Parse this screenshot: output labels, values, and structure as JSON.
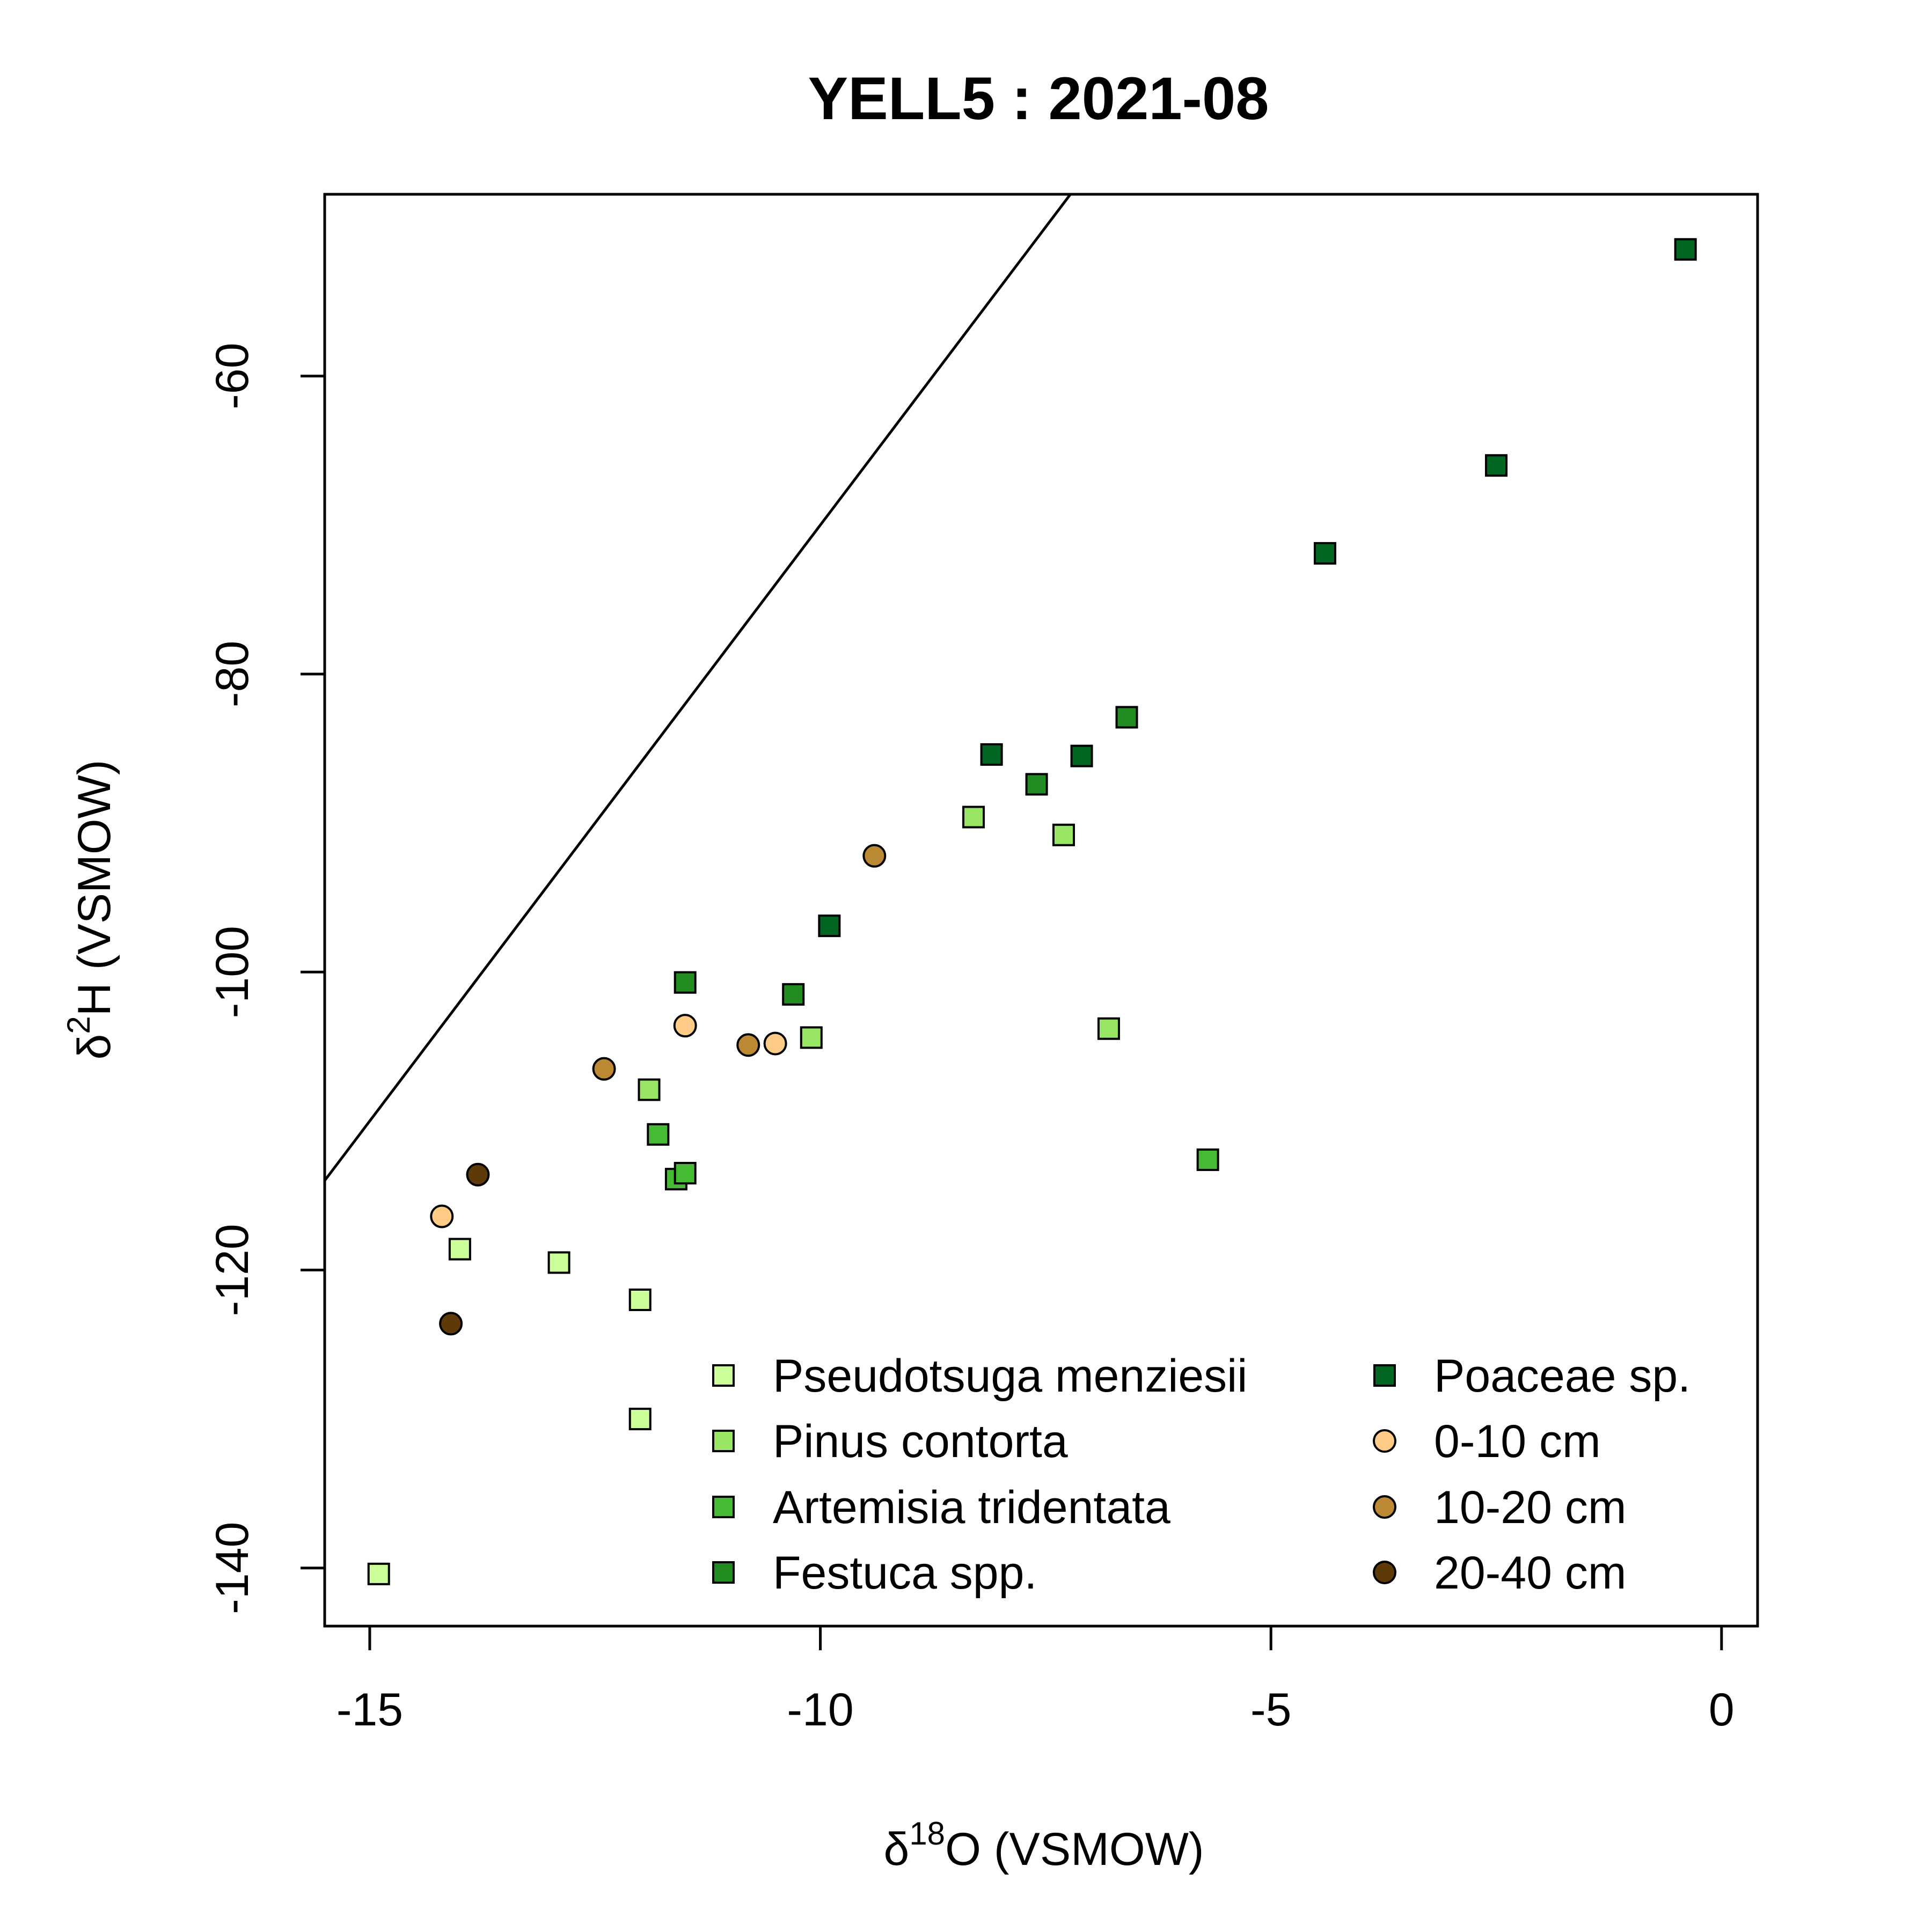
{
  "chart_data": {
    "type": "scatter",
    "title": "YELL5 : 2021-08",
    "xlabel": {
      "prefix": "δ",
      "sup": "18",
      "suffix": "O (VSMOW)"
    },
    "ylabel": {
      "prefix": "δ",
      "sup": "2",
      "suffix": "H (VSMOW)"
    },
    "xlim": [
      -15.5,
      0.4
    ],
    "ylim": [
      -143.9,
      -47.8
    ],
    "x_ticks": [
      -15,
      -10,
      -5,
      0
    ],
    "y_ticks": [
      -140,
      -120,
      -100,
      -80,
      -60
    ],
    "grid": false,
    "legend_position": "bottom-right",
    "reference_line": {
      "slope": 8,
      "intercept": 10
    },
    "series": [
      {
        "name": "Pseudotsuga menziesii",
        "marker": "square",
        "color": "#ccff99",
        "points": [
          [
            -14.0,
            -118.6
          ],
          [
            -12.9,
            -119.5
          ],
          [
            -12.0,
            -122.0
          ],
          [
            -12.0,
            -130.0
          ],
          [
            -14.9,
            -140.4
          ]
        ]
      },
      {
        "name": "Pinus contorta",
        "marker": "square",
        "color": "#99e666",
        "points": [
          [
            -11.9,
            -107.9
          ],
          [
            -8.3,
            -89.6
          ],
          [
            -7.3,
            -90.8
          ],
          [
            -10.1,
            -104.4
          ],
          [
            -6.8,
            -103.8
          ]
        ]
      },
      {
        "name": "Artemisia tridentata",
        "marker": "square",
        "color": "#44bb33",
        "points": [
          [
            -11.8,
            -110.9
          ],
          [
            -11.6,
            -113.9
          ],
          [
            -11.5,
            -113.5
          ],
          [
            -5.7,
            -112.6
          ]
        ]
      },
      {
        "name": "Festuca spp.",
        "marker": "square",
        "color": "#228b22",
        "points": [
          [
            -11.5,
            -100.7
          ],
          [
            -10.3,
            -101.5
          ],
          [
            -7.6,
            -87.4
          ],
          [
            -6.6,
            -82.9
          ]
        ]
      },
      {
        "name": "Poaceae sp.",
        "marker": "square",
        "color": "#006622",
        "points": [
          [
            -9.9,
            -96.9
          ],
          [
            -8.1,
            -85.4
          ],
          [
            -7.1,
            -85.5
          ],
          [
            -4.4,
            -71.9
          ],
          [
            -2.5,
            -66.0
          ],
          [
            -0.4,
            -51.5
          ]
        ]
      },
      {
        "name": "0-10 cm",
        "marker": "circle",
        "color": "#ffcc88",
        "points": [
          [
            -14.2,
            -116.4
          ],
          [
            -11.5,
            -103.6
          ],
          [
            -10.5,
            -104.8
          ]
        ]
      },
      {
        "name": "10-20 cm",
        "marker": "circle",
        "color": "#bb8833",
        "points": [
          [
            -12.4,
            -106.5
          ],
          [
            -10.8,
            -104.9
          ],
          [
            -9.4,
            -92.2
          ]
        ]
      },
      {
        "name": "20-40 cm",
        "marker": "circle",
        "color": "#5e3a08",
        "points": [
          [
            -13.8,
            -113.6
          ],
          [
            -14.1,
            -123.6
          ]
        ]
      }
    ]
  }
}
